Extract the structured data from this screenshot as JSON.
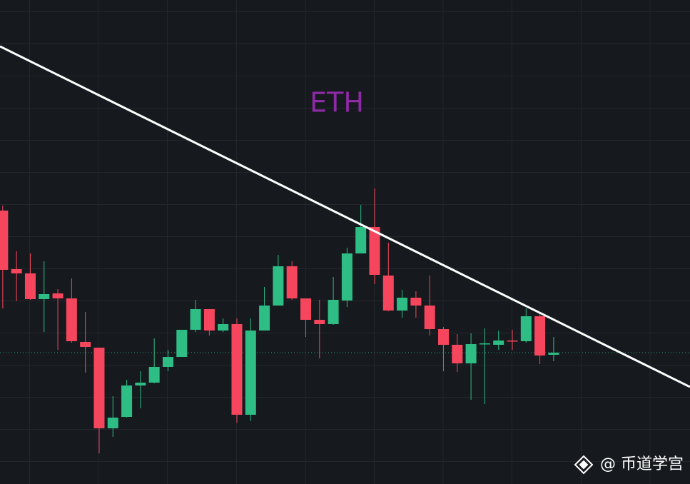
{
  "chart_data": {
    "type": "candlestick",
    "title": "ETH",
    "watermark": "@ 币道学宫",
    "up_color": "#2ebd85",
    "down_color": "#f6465d",
    "background": "#161a1e",
    "xlim": [
      -0.2,
      49.9
    ],
    "ylim": [
      0,
      678
    ],
    "open": [
      383,
      301,
      295,
      259,
      267,
      260,
      199,
      191,
      78,
      94,
      138,
      142,
      164,
      178,
      216,
      245,
      215,
      224,
      97,
      215,
      250,
      305,
      260,
      230,
      224,
      257,
      323,
      360,
      292,
      243,
      261,
      250,
      217,
      195,
      169,
      196,
      195,
      201,
      200,
      235,
      181
    ],
    "high": [
      390,
      326,
      323,
      312,
      273,
      288,
      241,
      191,
      123,
      146,
      158,
      204,
      188,
      216,
      258,
      245,
      232,
      232,
      232,
      276,
      321,
      312,
      260,
      258,
      290,
      331,
      391,
      414,
      338,
      272,
      270,
      292,
      220,
      210,
      211,
      218,
      215,
      216,
      246,
      240,
      206
    ],
    "low": [
      246,
      256,
      258,
      213,
      188,
      198,
      156,
      43,
      66,
      93,
      106,
      141,
      158,
      178,
      213,
      208,
      213,
      86,
      88,
      215,
      250,
      258,
      206,
      176,
      223,
      248,
      323,
      280,
      242,
      233,
      233,
      208,
      158,
      157,
      118,
      112,
      188,
      188,
      198,
      168,
      172
    ],
    "close": [
      300,
      295,
      259,
      266,
      260,
      200,
      192,
      78,
      93,
      138,
      142,
      164,
      178,
      216,
      245,
      215,
      224,
      97,
      215,
      250,
      305,
      260,
      230,
      224,
      258,
      323,
      360,
      293,
      243,
      261,
      250,
      217,
      195,
      169,
      196,
      197,
      201,
      200,
      235,
      180,
      184
    ],
    "trend_line": {
      "x": [
        -0.2,
        49.9
      ],
      "y": [
        613,
        136
      ],
      "color": "#ffffff"
    },
    "last_price_line": {
      "value": 184,
      "color": "#2ebd85"
    }
  }
}
